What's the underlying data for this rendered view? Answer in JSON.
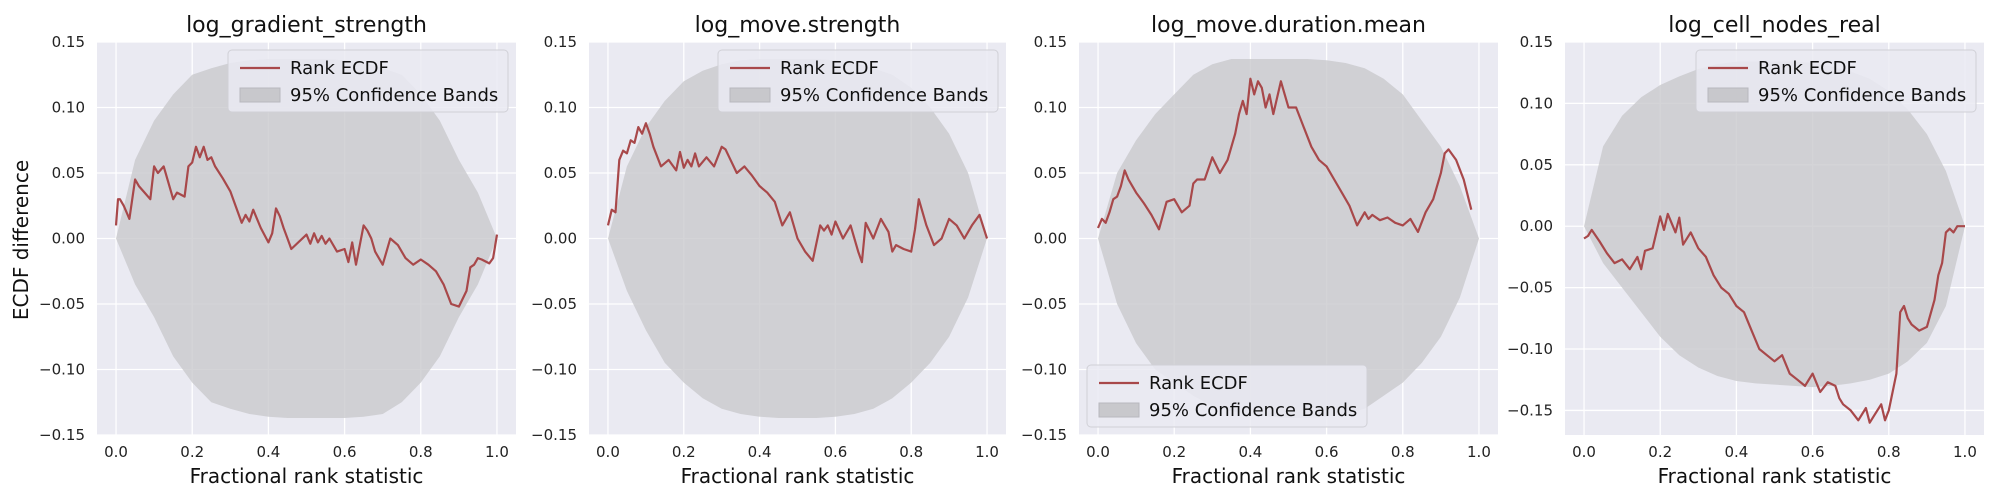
{
  "figure": {
    "ylabel": "ECDF difference",
    "xlabel": "Fractional rank statistic"
  },
  "chart_data": [
    {
      "type": "line",
      "title": "log_gradient_strength",
      "xlabel": "Fractional rank statistic",
      "ylabel": "ECDF difference",
      "xlim": [
        -0.05,
        1.05
      ],
      "ylim": [
        -0.15,
        0.15
      ],
      "xticks": [
        "0.0",
        "0.2",
        "0.4",
        "0.6",
        "0.8",
        "1.0"
      ],
      "yticks": [
        "−0.15",
        "−0.10",
        "−0.05",
        "0.00",
        "0.05",
        "0.10",
        "0.15"
      ],
      "legend": {
        "position": "upper right",
        "entries": [
          "Rank ECDF",
          "95% Confidence Bands"
        ]
      },
      "grid": true,
      "series": [
        {
          "name": "Rank ECDF",
          "color": "#a8484a",
          "x": [
            0.0,
            0.005,
            0.01,
            0.02,
            0.035,
            0.05,
            0.06,
            0.075,
            0.09,
            0.1,
            0.11,
            0.125,
            0.14,
            0.15,
            0.16,
            0.18,
            0.19,
            0.2,
            0.21,
            0.22,
            0.23,
            0.24,
            0.25,
            0.26,
            0.28,
            0.3,
            0.32,
            0.33,
            0.34,
            0.35,
            0.36,
            0.38,
            0.4,
            0.41,
            0.42,
            0.43,
            0.44,
            0.45,
            0.46,
            0.5,
            0.51,
            0.52,
            0.53,
            0.54,
            0.55,
            0.56,
            0.58,
            0.6,
            0.61,
            0.62,
            0.63,
            0.65,
            0.66,
            0.67,
            0.68,
            0.7,
            0.72,
            0.74,
            0.76,
            0.78,
            0.8,
            0.82,
            0.84,
            0.86,
            0.88,
            0.9,
            0.92,
            0.93,
            0.94,
            0.95,
            0.96,
            0.98,
            0.99,
            1.0
          ],
          "y": [
            0.01,
            0.03,
            0.03,
            0.025,
            0.015,
            0.045,
            0.04,
            0.035,
            0.03,
            0.055,
            0.05,
            0.055,
            0.04,
            0.03,
            0.035,
            0.032,
            0.055,
            0.058,
            0.07,
            0.062,
            0.07,
            0.06,
            0.062,
            0.055,
            0.046,
            0.036,
            0.02,
            0.012,
            0.018,
            0.013,
            0.022,
            0.008,
            -0.003,
            0.004,
            0.023,
            0.017,
            0.008,
            0.0,
            -0.008,
            0.003,
            -0.004,
            0.004,
            -0.003,
            0.002,
            -0.004,
            0.0,
            -0.01,
            -0.008,
            -0.018,
            -0.003,
            -0.02,
            0.01,
            0.006,
            0.0,
            -0.01,
            -0.02,
            0.0,
            -0.005,
            -0.015,
            -0.02,
            -0.016,
            -0.02,
            -0.025,
            -0.035,
            -0.05,
            -0.052,
            -0.04,
            -0.022,
            -0.02,
            -0.015,
            -0.016,
            -0.019,
            -0.015,
            0.003
          ]
        },
        {
          "name": "95% Confidence Bands",
          "color": "#c8c8cc",
          "x": [
            0.0,
            0.05,
            0.1,
            0.15,
            0.2,
            0.25,
            0.3,
            0.35,
            0.4,
            0.45,
            0.5,
            0.55,
            0.6,
            0.65,
            0.7,
            0.75,
            0.8,
            0.85,
            0.9,
            0.95,
            1.0
          ],
          "upper": [
            0.0,
            0.06,
            0.09,
            0.11,
            0.125,
            0.13,
            0.134,
            0.136,
            0.137,
            0.137,
            0.137,
            0.137,
            0.136,
            0.134,
            0.13,
            0.125,
            0.11,
            0.09,
            0.06,
            0.035,
            0.0
          ],
          "lower": [
            0.0,
            -0.035,
            -0.06,
            -0.09,
            -0.11,
            -0.125,
            -0.13,
            -0.134,
            -0.136,
            -0.137,
            -0.137,
            -0.137,
            -0.137,
            -0.136,
            -0.134,
            -0.125,
            -0.11,
            -0.09,
            -0.06,
            -0.035,
            0.0
          ]
        }
      ]
    },
    {
      "type": "line",
      "title": "log_move.strength",
      "xlabel": "Fractional rank statistic",
      "ylabel": "",
      "xlim": [
        -0.05,
        1.05
      ],
      "ylim": [
        -0.15,
        0.15
      ],
      "xticks": [
        "0.0",
        "0.2",
        "0.4",
        "0.6",
        "0.8",
        "1.0"
      ],
      "yticks": [
        "−0.15",
        "−0.10",
        "−0.05",
        "0.00",
        "0.05",
        "0.10",
        "0.15"
      ],
      "legend": {
        "position": "upper right",
        "entries": [
          "Rank ECDF",
          "95% Confidence Bands"
        ]
      },
      "grid": true,
      "series": [
        {
          "name": "Rank ECDF",
          "color": "#a8484a",
          "x": [
            0.0,
            0.01,
            0.02,
            0.025,
            0.03,
            0.04,
            0.05,
            0.06,
            0.07,
            0.08,
            0.09,
            0.1,
            0.11,
            0.12,
            0.14,
            0.16,
            0.18,
            0.19,
            0.2,
            0.21,
            0.22,
            0.23,
            0.24,
            0.26,
            0.28,
            0.3,
            0.31,
            0.32,
            0.34,
            0.36,
            0.38,
            0.4,
            0.42,
            0.44,
            0.46,
            0.48,
            0.5,
            0.52,
            0.54,
            0.56,
            0.57,
            0.58,
            0.59,
            0.6,
            0.62,
            0.64,
            0.66,
            0.67,
            0.68,
            0.7,
            0.72,
            0.74,
            0.75,
            0.76,
            0.78,
            0.8,
            0.81,
            0.82,
            0.84,
            0.86,
            0.88,
            0.9,
            0.92,
            0.93,
            0.94,
            0.96,
            0.98,
            1.0
          ],
          "y": [
            0.01,
            0.022,
            0.02,
            0.04,
            0.06,
            0.067,
            0.065,
            0.075,
            0.073,
            0.085,
            0.08,
            0.088,
            0.08,
            0.07,
            0.055,
            0.06,
            0.052,
            0.066,
            0.054,
            0.06,
            0.055,
            0.065,
            0.055,
            0.062,
            0.055,
            0.07,
            0.068,
            0.062,
            0.05,
            0.055,
            0.048,
            0.04,
            0.035,
            0.028,
            0.01,
            0.02,
            0.0,
            -0.01,
            -0.017,
            0.01,
            0.006,
            0.01,
            0.003,
            0.013,
            0.0,
            0.01,
            -0.01,
            -0.018,
            0.012,
            0.0,
            0.015,
            0.005,
            -0.01,
            -0.005,
            -0.008,
            -0.01,
            0.007,
            0.03,
            0.01,
            -0.005,
            0.0,
            0.015,
            0.01,
            0.005,
            0.0,
            0.01,
            0.018,
            0.0
          ]
        },
        {
          "name": "95% Confidence Bands",
          "color": "#c8c8cc",
          "x": [
            0.0,
            0.05,
            0.1,
            0.15,
            0.2,
            0.25,
            0.3,
            0.35,
            0.4,
            0.45,
            0.5,
            0.55,
            0.6,
            0.65,
            0.7,
            0.75,
            0.8,
            0.85,
            0.9,
            0.95,
            1.0
          ],
          "upper": [
            0.0,
            0.055,
            0.085,
            0.105,
            0.12,
            0.128,
            0.133,
            0.136,
            0.137,
            0.137,
            0.137,
            0.137,
            0.136,
            0.134,
            0.13,
            0.125,
            0.115,
            0.1,
            0.08,
            0.05,
            0.0
          ],
          "lower": [
            0.0,
            -0.04,
            -0.07,
            -0.095,
            -0.11,
            -0.122,
            -0.13,
            -0.134,
            -0.136,
            -0.137,
            -0.137,
            -0.137,
            -0.136,
            -0.134,
            -0.13,
            -0.122,
            -0.11,
            -0.095,
            -0.075,
            -0.045,
            0.0
          ]
        }
      ]
    },
    {
      "type": "line",
      "title": "log_move.duration.mean",
      "xlabel": "Fractional rank statistic",
      "ylabel": "",
      "xlim": [
        -0.05,
        1.05
      ],
      "ylim": [
        -0.15,
        0.15
      ],
      "xticks": [
        "0.0",
        "0.2",
        "0.4",
        "0.6",
        "0.8",
        "1.0"
      ],
      "yticks": [
        "−0.15",
        "−0.10",
        "−0.05",
        "0.00",
        "0.05",
        "0.10",
        "0.15"
      ],
      "legend": {
        "position": "lower left",
        "entries": [
          "Rank ECDF",
          "95% Confidence Bands"
        ]
      },
      "grid": true,
      "series": [
        {
          "name": "Rank ECDF",
          "color": "#a8484a",
          "x": [
            0.0,
            0.01,
            0.02,
            0.03,
            0.04,
            0.05,
            0.06,
            0.07,
            0.08,
            0.09,
            0.1,
            0.12,
            0.14,
            0.16,
            0.18,
            0.2,
            0.22,
            0.24,
            0.25,
            0.26,
            0.28,
            0.3,
            0.32,
            0.34,
            0.35,
            0.36,
            0.37,
            0.38,
            0.39,
            0.4,
            0.41,
            0.42,
            0.43,
            0.44,
            0.45,
            0.46,
            0.48,
            0.49,
            0.5,
            0.52,
            0.54,
            0.56,
            0.58,
            0.6,
            0.62,
            0.64,
            0.66,
            0.68,
            0.7,
            0.71,
            0.72,
            0.74,
            0.76,
            0.78,
            0.8,
            0.82,
            0.84,
            0.86,
            0.88,
            0.9,
            0.91,
            0.92,
            0.94,
            0.96,
            0.98
          ],
          "y": [
            0.008,
            0.015,
            0.012,
            0.02,
            0.03,
            0.032,
            0.04,
            0.052,
            0.045,
            0.04,
            0.035,
            0.027,
            0.018,
            0.007,
            0.028,
            0.03,
            0.02,
            0.025,
            0.042,
            0.045,
            0.045,
            0.062,
            0.05,
            0.06,
            0.07,
            0.08,
            0.095,
            0.105,
            0.095,
            0.122,
            0.11,
            0.12,
            0.115,
            0.1,
            0.11,
            0.095,
            0.12,
            0.11,
            0.1,
            0.1,
            0.085,
            0.07,
            0.06,
            0.055,
            0.045,
            0.035,
            0.025,
            0.01,
            0.02,
            0.015,
            0.018,
            0.014,
            0.016,
            0.012,
            0.01,
            0.015,
            0.005,
            0.02,
            0.03,
            0.05,
            0.065,
            0.068,
            0.06,
            0.045,
            0.022
          ]
        },
        {
          "name": "95% Confidence Bands",
          "color": "#c8c8cc",
          "x": [
            0.0,
            0.05,
            0.1,
            0.15,
            0.2,
            0.25,
            0.3,
            0.35,
            0.4,
            0.45,
            0.5,
            0.55,
            0.6,
            0.65,
            0.7,
            0.75,
            0.8,
            0.85,
            0.9,
            0.95,
            1.0
          ],
          "upper": [
            0.0,
            0.05,
            0.075,
            0.095,
            0.11,
            0.125,
            0.133,
            0.137,
            0.137,
            0.137,
            0.137,
            0.137,
            0.136,
            0.134,
            0.13,
            0.122,
            0.11,
            0.09,
            0.07,
            0.04,
            0.0
          ],
          "lower": [
            0.0,
            -0.05,
            -0.08,
            -0.1,
            -0.11,
            -0.12,
            -0.128,
            -0.132,
            -0.134,
            -0.136,
            -0.137,
            -0.137,
            -0.136,
            -0.134,
            -0.13,
            -0.12,
            -0.11,
            -0.095,
            -0.075,
            -0.045,
            0.0
          ]
        }
      ]
    },
    {
      "type": "line",
      "title": "log_cell_nodes_real",
      "xlabel": "Fractional rank statistic",
      "ylabel": "",
      "xlim": [
        -0.05,
        1.05
      ],
      "ylim": [
        -0.17,
        0.15
      ],
      "xticks": [
        "0.0",
        "0.2",
        "0.4",
        "0.6",
        "0.8",
        "1.0"
      ],
      "yticks": [
        "−0.15",
        "−0.10",
        "−0.05",
        "0.00",
        "0.05",
        "0.10",
        "0.15"
      ],
      "legend": {
        "position": "upper right",
        "entries": [
          "Rank ECDF",
          "95% Confidence Bands"
        ]
      },
      "grid": true,
      "series": [
        {
          "name": "Rank ECDF",
          "color": "#a8484a",
          "x": [
            0.0,
            0.01,
            0.02,
            0.04,
            0.06,
            0.08,
            0.1,
            0.12,
            0.14,
            0.15,
            0.16,
            0.18,
            0.2,
            0.21,
            0.22,
            0.24,
            0.25,
            0.26,
            0.28,
            0.3,
            0.32,
            0.34,
            0.36,
            0.38,
            0.4,
            0.42,
            0.44,
            0.46,
            0.48,
            0.5,
            0.52,
            0.54,
            0.56,
            0.58,
            0.6,
            0.62,
            0.64,
            0.66,
            0.67,
            0.68,
            0.7,
            0.72,
            0.74,
            0.75,
            0.76,
            0.78,
            0.79,
            0.8,
            0.81,
            0.82,
            0.83,
            0.84,
            0.85,
            0.86,
            0.88,
            0.9,
            0.92,
            0.93,
            0.94,
            0.95,
            0.96,
            0.97,
            0.98,
            1.0
          ],
          "y": [
            -0.01,
            -0.008,
            -0.003,
            -0.012,
            -0.022,
            -0.03,
            -0.027,
            -0.035,
            -0.025,
            -0.035,
            -0.02,
            -0.018,
            0.008,
            -0.003,
            0.01,
            -0.005,
            0.007,
            -0.015,
            -0.005,
            -0.018,
            -0.025,
            -0.04,
            -0.05,
            -0.055,
            -0.065,
            -0.07,
            -0.085,
            -0.1,
            -0.105,
            -0.11,
            -0.105,
            -0.12,
            -0.125,
            -0.13,
            -0.12,
            -0.135,
            -0.127,
            -0.13,
            -0.14,
            -0.145,
            -0.15,
            -0.158,
            -0.148,
            -0.16,
            -0.155,
            -0.145,
            -0.158,
            -0.15,
            -0.135,
            -0.12,
            -0.07,
            -0.065,
            -0.075,
            -0.08,
            -0.085,
            -0.082,
            -0.06,
            -0.04,
            -0.03,
            -0.005,
            -0.002,
            -0.005,
            0.0,
            0.0
          ]
        },
        {
          "name": "95% Confidence Bands",
          "color": "#c8c8cc",
          "x": [
            0.0,
            0.05,
            0.1,
            0.15,
            0.2,
            0.25,
            0.3,
            0.35,
            0.4,
            0.45,
            0.5,
            0.55,
            0.6,
            0.65,
            0.7,
            0.75,
            0.8,
            0.85,
            0.9,
            0.95,
            1.0
          ],
          "upper": [
            0.0,
            0.065,
            0.09,
            0.105,
            0.115,
            0.122,
            0.128,
            0.132,
            0.134,
            0.134,
            0.134,
            0.134,
            0.133,
            0.13,
            0.126,
            0.12,
            0.11,
            0.095,
            0.075,
            0.045,
            0.0
          ],
          "lower": [
            0.0,
            -0.03,
            -0.05,
            -0.07,
            -0.09,
            -0.105,
            -0.115,
            -0.122,
            -0.126,
            -0.128,
            -0.129,
            -0.13,
            -0.131,
            -0.13,
            -0.128,
            -0.125,
            -0.12,
            -0.11,
            -0.095,
            -0.065,
            0.0
          ]
        }
      ]
    }
  ]
}
